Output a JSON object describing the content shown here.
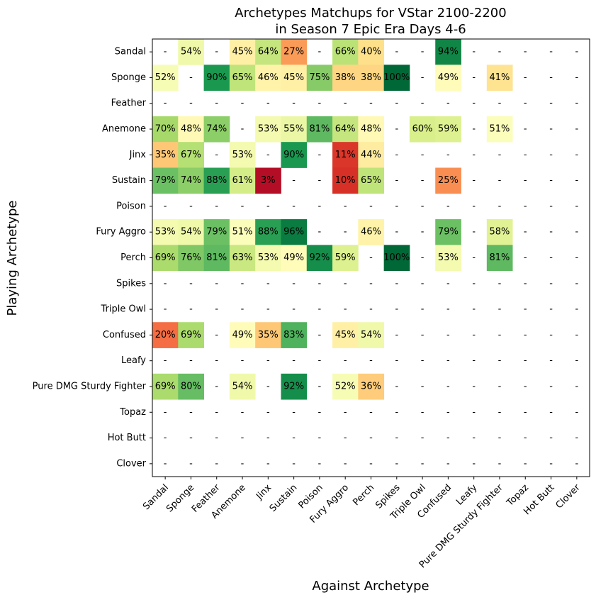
{
  "chart_data": {
    "type": "heatmap",
    "title_line1": "Archetypes Matchups for VStar 2100-2200",
    "title_line2": "in Season 7 Epic Era Days 4-6",
    "xlabel": "Against Archetype",
    "ylabel": "Playing Archetype",
    "colormap": "RdYlGn",
    "value_range": [
      0,
      100
    ],
    "missing_label": "-",
    "rows": [
      "Sandal",
      "Sponge",
      "Feather",
      "Anemone",
      "Jinx",
      "Sustain",
      "Poison",
      "Fury Aggro",
      "Perch",
      "Spikes",
      "Triple Owl",
      "Confused",
      "Leafy",
      "Pure DMG Sturdy Fighter",
      "Topaz",
      "Hot Butt",
      "Clover"
    ],
    "columns": [
      "Sandal",
      "Sponge",
      "Feather",
      "Anemone",
      "Jinx",
      "Sustain",
      "Poison",
      "Fury Aggro",
      "Perch",
      "Spikes",
      "Triple Owl",
      "Confused",
      "Leafy",
      "Pure DMG Sturdy Fighter",
      "Topaz",
      "Hot Butt",
      "Clover"
    ],
    "values": [
      [
        null,
        54,
        null,
        45,
        64,
        27,
        null,
        66,
        40,
        null,
        null,
        94,
        null,
        null,
        null,
        null,
        null
      ],
      [
        52,
        null,
        90,
        65,
        46,
        45,
        75,
        38,
        38,
        100,
        null,
        49,
        null,
        41,
        null,
        null,
        null
      ],
      [
        null,
        null,
        null,
        null,
        null,
        null,
        null,
        null,
        null,
        null,
        null,
        null,
        null,
        null,
        null,
        null,
        null
      ],
      [
        70,
        48,
        74,
        null,
        53,
        55,
        81,
        64,
        48,
        null,
        60,
        59,
        null,
        51,
        null,
        null,
        null
      ],
      [
        35,
        67,
        null,
        53,
        null,
        90,
        null,
        11,
        44,
        null,
        null,
        null,
        null,
        null,
        null,
        null,
        null
      ],
      [
        79,
        74,
        88,
        61,
        3,
        null,
        null,
        10,
        65,
        null,
        null,
        25,
        null,
        null,
        null,
        null,
        null
      ],
      [
        null,
        null,
        null,
        null,
        null,
        null,
        null,
        null,
        null,
        null,
        null,
        null,
        null,
        null,
        null,
        null,
        null
      ],
      [
        53,
        54,
        79,
        51,
        88,
        96,
        null,
        null,
        46,
        null,
        null,
        79,
        null,
        58,
        null,
        null,
        null
      ],
      [
        69,
        76,
        81,
        63,
        53,
        49,
        92,
        59,
        null,
        100,
        null,
        53,
        null,
        81,
        null,
        null,
        null
      ],
      [
        null,
        null,
        null,
        null,
        null,
        null,
        null,
        null,
        null,
        null,
        null,
        null,
        null,
        null,
        null,
        null,
        null
      ],
      [
        null,
        null,
        null,
        null,
        null,
        null,
        null,
        null,
        null,
        null,
        null,
        null,
        null,
        null,
        null,
        null,
        null
      ],
      [
        20,
        69,
        null,
        49,
        35,
        83,
        null,
        45,
        54,
        null,
        null,
        null,
        null,
        null,
        null,
        null,
        null
      ],
      [
        null,
        null,
        null,
        null,
        null,
        null,
        null,
        null,
        null,
        null,
        null,
        null,
        null,
        null,
        null,
        null,
        null
      ],
      [
        69,
        80,
        null,
        54,
        null,
        92,
        null,
        52,
        36,
        null,
        null,
        null,
        null,
        null,
        null,
        null,
        null
      ],
      [
        null,
        null,
        null,
        null,
        null,
        null,
        null,
        null,
        null,
        null,
        null,
        null,
        null,
        null,
        null,
        null,
        null
      ],
      [
        null,
        null,
        null,
        null,
        null,
        null,
        null,
        null,
        null,
        null,
        null,
        null,
        null,
        null,
        null,
        null,
        null
      ],
      [
        null,
        null,
        null,
        null,
        null,
        null,
        null,
        null,
        null,
        null,
        null,
        null,
        null,
        null,
        null,
        null,
        null
      ]
    ],
    "grid": false,
    "legend": "none"
  }
}
